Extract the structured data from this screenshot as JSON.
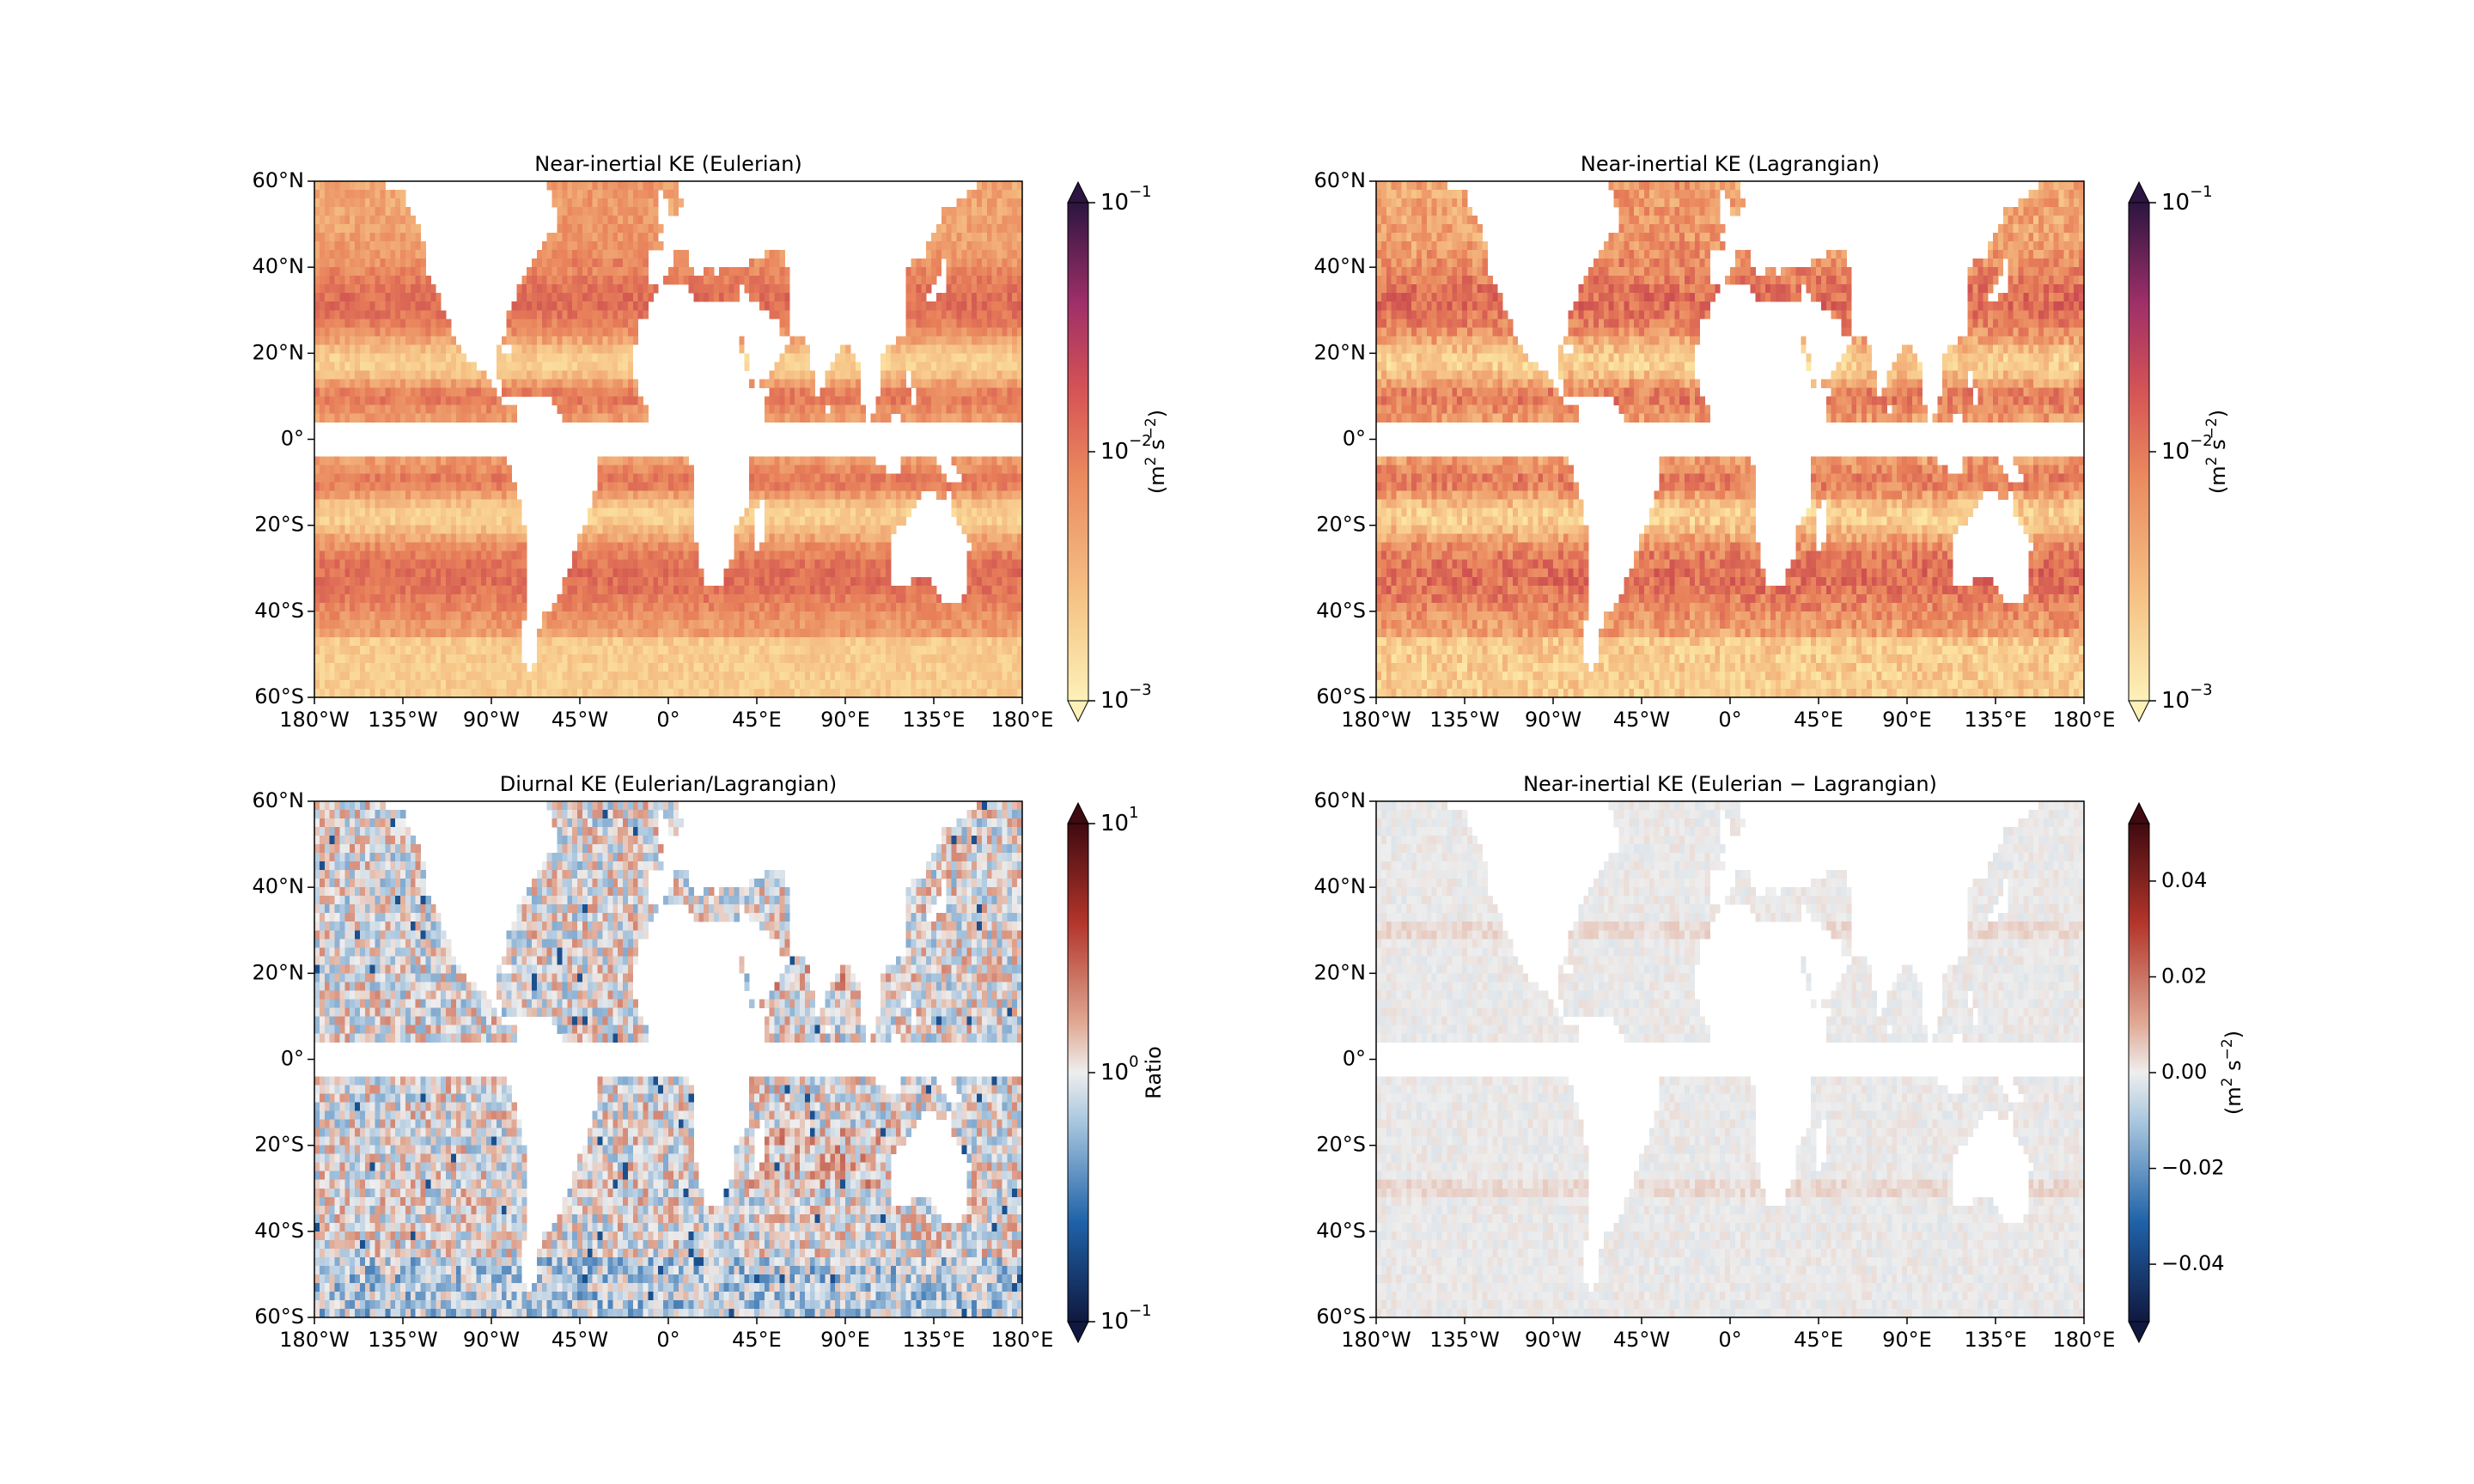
{
  "figure": {
    "panels": [
      {
        "id": "ni-eulerian",
        "title": "Near-inertial KE (Eulerian)",
        "colormap": "warm",
        "colorbar": {
          "scale": "log",
          "ticks": [
            {
              "base": "10",
              "exp": "−1"
            },
            {
              "base": "10",
              "exp": "−2"
            },
            {
              "base": "10",
              "exp": "−3"
            }
          ],
          "label": {
            "pre": "(m",
            "sup1": "2",
            "mid": " s",
            "sup2": "−2",
            "post": ")"
          }
        }
      },
      {
        "id": "ni-lagrangian",
        "title": "Near-inertial KE (Lagrangian)",
        "colormap": "warm",
        "colorbar": {
          "scale": "log",
          "ticks": [
            {
              "base": "10",
              "exp": "−1"
            },
            {
              "base": "10",
              "exp": "−2"
            },
            {
              "base": "10",
              "exp": "−3"
            }
          ],
          "label": {
            "pre": "(m",
            "sup1": "2",
            "mid": " s",
            "sup2": "−2",
            "post": ")"
          }
        }
      },
      {
        "id": "diurnal-ratio",
        "title": "Diurnal KE (Eulerian/Lagrangian)",
        "colormap": "diverging",
        "colorbar": {
          "scale": "log",
          "ticks": [
            {
              "base": "10",
              "exp": "1"
            },
            {
              "base": "10",
              "exp": "0"
            },
            {
              "base": "10",
              "exp": "−1"
            }
          ],
          "label_text": "Ratio"
        }
      },
      {
        "id": "ni-difference",
        "title": "Near-inertial KE (Eulerian − Lagrangian)",
        "colormap": "diverging-light",
        "colorbar": {
          "scale": "linear",
          "ticks_text": [
            "0.04",
            "0.02",
            "0.00",
            "−0.02",
            "−0.04"
          ],
          "label": {
            "pre": "(m",
            "sup1": "2",
            "mid": " s",
            "sup2": "−2",
            "post": ")"
          }
        }
      }
    ],
    "x_ticks": [
      "180°W",
      "135°W",
      "90°W",
      "45°W",
      "0°",
      "45°E",
      "90°E",
      "135°E",
      "180°E"
    ],
    "y_ticks": [
      "60°N",
      "40°N",
      "20°N",
      "0°",
      "20°S",
      "40°S",
      "60°S"
    ],
    "map_extent": {
      "lon": [
        -180,
        180
      ],
      "lat": [
        -60,
        60
      ]
    },
    "equatorial_gap_deg": [
      -5,
      5
    ],
    "colors": {
      "warm_low": "#fbe3a2",
      "warm_mid": "#e0724f",
      "warm_high": "#3a1a4a",
      "div_low": "#0f1f55",
      "div_mid": "#f0f0f0",
      "div_high": "#4a0a14"
    }
  }
}
